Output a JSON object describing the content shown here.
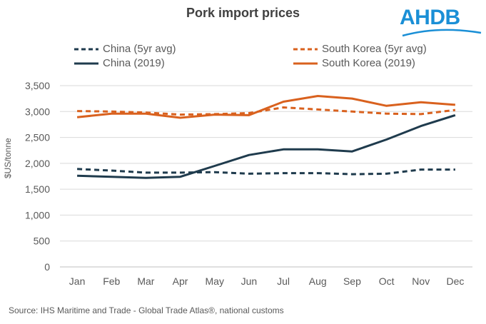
{
  "title": "Pork import prices",
  "logo": "AHDB",
  "source": "Source: IHS Maritime and Trade  - Global Trade  Atlas®, national customs",
  "colors": {
    "china": "#1f3b4d",
    "south_korea": "#d9611e",
    "grid": "#d9d9d9",
    "logo": "#1a8fd6"
  },
  "chart_data": {
    "type": "line",
    "title": "Pork import prices",
    "xlabel": "",
    "ylabel": "$US/tonne",
    "categories": [
      "Jan",
      "Feb",
      "Mar",
      "Apr",
      "May",
      "Jun",
      "Jul",
      "Aug",
      "Sep",
      "Oct",
      "Nov",
      "Dec"
    ],
    "ylim": [
      0,
      3500
    ],
    "yticks": [
      0,
      500,
      1000,
      1500,
      2000,
      2500,
      3000,
      3500
    ],
    "ytick_labels": [
      "0",
      "500",
      "1,000",
      "1,500",
      "2,000",
      "2,500",
      "3,000",
      "3,500"
    ],
    "grid": true,
    "legend_position": "top",
    "series": [
      {
        "name": "China (5yr avg)",
        "style": "dashed",
        "color": "#1f3b4d",
        "values": [
          1890,
          1860,
          1820,
          1820,
          1830,
          1800,
          1810,
          1810,
          1790,
          1800,
          1880,
          1880
        ]
      },
      {
        "name": "South Korea (5yr avg)",
        "style": "dashed",
        "color": "#d9611e",
        "values": [
          3010,
          3000,
          2980,
          2940,
          2950,
          2970,
          3080,
          3040,
          3000,
          2960,
          2950,
          3030
        ]
      },
      {
        "name": "China (2019)",
        "style": "solid",
        "color": "#1f3b4d",
        "values": [
          1760,
          1740,
          1720,
          1740,
          1950,
          2160,
          2270,
          2270,
          2230,
          2460,
          2720,
          2930
        ]
      },
      {
        "name": "South Korea (2019)",
        "style": "solid",
        "color": "#d9611e",
        "values": [
          2890,
          2960,
          2960,
          2880,
          2940,
          2930,
          3190,
          3300,
          3250,
          3110,
          3180,
          3130
        ]
      }
    ]
  }
}
